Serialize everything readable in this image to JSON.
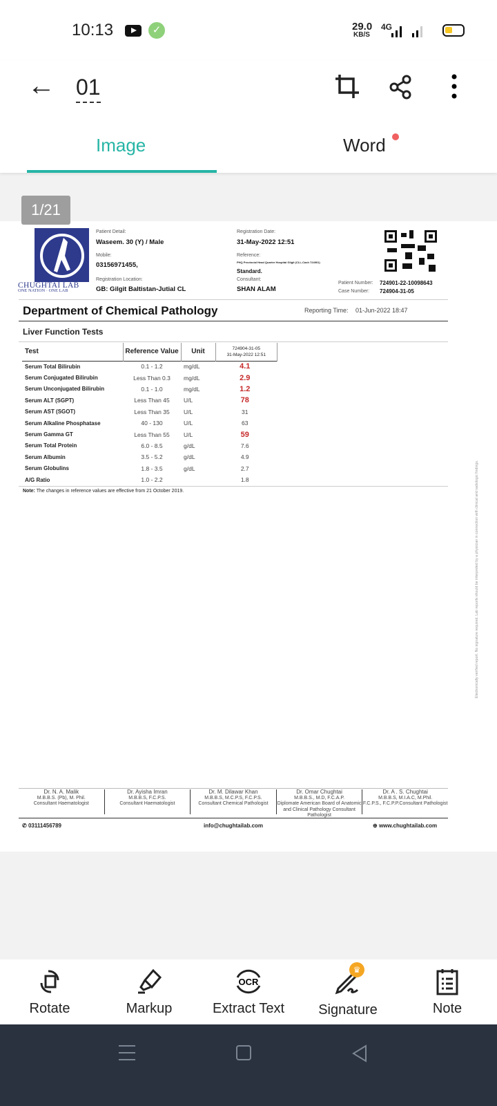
{
  "status": {
    "time": "10:13",
    "speed": "29.0",
    "speed_unit": "KB/S",
    "network": "4G"
  },
  "appbar": {
    "title": "01"
  },
  "tabs": [
    {
      "label": "Image",
      "active": true
    },
    {
      "label": "Word",
      "badge": true
    }
  ],
  "page_indicator": "1/21",
  "report": {
    "lab_name": "CHUGHTAI LAB",
    "lab_tagline": "ONE NATION · ONE LAB",
    "patient_detail_label": "Patient Detail:",
    "patient_detail": "Waseem.  30 (Y) / Male",
    "mobile_label": "Mobile:",
    "mobile": "03156971455,",
    "reg_location_label": "Registration Location:",
    "reg_location": "GB: Gilgit Baltistan-Jutial CL",
    "reg_date_label": "Registration Date:",
    "reg_date": "31-May-2022 12:51",
    "reference_label": "Reference:",
    "reference": "PHQ Provincial Head Quarter Hospital Gilgit (CLL-Cash 724901)",
    "reference2": "Standard.",
    "consultant_label": "Consultant:",
    "consultant": "SHAN ALAM",
    "patient_number_label": "Patient Number:",
    "patient_number": "724901-22-10098643",
    "case_number_label": "Case Number:",
    "case_number": "724904-31-05",
    "department": "Department of Chemical Pathology",
    "reporting_time_label": "Reporting Time:",
    "reporting_time": "01-Jun-2022 18:47",
    "section": "Liver Function Tests",
    "columns": [
      "Test",
      "Reference Value",
      "Unit",
      "724904-31-05",
      "31-May-2022 12:51"
    ],
    "rows": [
      {
        "test": "Serum Total Bilirubin",
        "ref": "0.1  -  1.2",
        "unit": "mg/dL",
        "value": "4.1",
        "abnormal": true
      },
      {
        "test": "Serum Conjugated Bilirubin",
        "ref": "Less Than 0.3",
        "unit": "mg/dL",
        "value": "2.9",
        "abnormal": true
      },
      {
        "test": "Serum Unconjugated Bilirubin",
        "ref": "0.1  -  1.0",
        "unit": "mg/dL",
        "value": "1.2",
        "abnormal": true
      },
      {
        "test": "Serum ALT (SGPT)",
        "ref": "Less Than 45",
        "unit": "U/L",
        "value": "78",
        "abnormal": true
      },
      {
        "test": "Serum AST (SGOT)",
        "ref": "Less Than 35",
        "unit": "U/L",
        "value": "31",
        "abnormal": false
      },
      {
        "test": "Serum Alkaline Phosphatase",
        "ref": "40  -  130",
        "unit": "U/L",
        "value": "63",
        "abnormal": false
      },
      {
        "test": "Serum Gamma GT",
        "ref": "Less Than 55",
        "unit": "U/L",
        "value": "59",
        "abnormal": true
      },
      {
        "test": "Serum Total Protein",
        "ref": "6.0  -  8.5",
        "unit": "g/dL",
        "value": "7.6",
        "abnormal": false
      },
      {
        "test": "Serum Albumin",
        "ref": "3.5  -  5.2",
        "unit": "g/dL",
        "value": "4.9",
        "abnormal": false
      },
      {
        "test": "Serum Globulins",
        "ref": "1.8  -  3.5",
        "unit": "g/dL",
        "value": "2.7",
        "abnormal": false
      },
      {
        "test": "A/G Ratio",
        "ref": "1.0  -  2.2",
        "unit": "",
        "value": "1.8",
        "abnormal": false
      }
    ],
    "note_label": "Note:",
    "note": " The changes in reference values are  effective from 21 October 2019.",
    "side_text": "Electronically verified report. No signature required. Lab reports should be interpreted by a physician in connection with clinical and radiologic findings.",
    "doctors": [
      {
        "name": "Dr. N. A. Malik",
        "l1": "M.B.B.S. (Pb), M. Phil.",
        "l2": "Consultant Haematologist"
      },
      {
        "name": "Dr. Ayisha Imran",
        "l1": "M.B.B.S, F.C.P.S.",
        "l2": "Consultant Haematologist"
      },
      {
        "name": "Dr. M. Dilawar Khan",
        "l1": "M.B.B.S, M.C.P.S, F.C.P.S.",
        "l2": "Consultant Chemical Pathologist"
      },
      {
        "name": "Dr. Omar Chughtai",
        "l1": "M.B.B.S., M.D, F.C.A.P.",
        "l2": "Diplomate American Board of Anatomic and Clinical Pathology Consultant Pathologist"
      },
      {
        "name": "Dr. A . S. Chughtai",
        "l1": "M.B.B.S, M.I.A.C, M.Phil.",
        "l2": "F.C.P.S., F.C.P.P.Consultant Pathologist"
      }
    ],
    "phone": "03111456789",
    "email": "info@chughtailab.com",
    "website": "www.chughtailab.com"
  },
  "toolbar": [
    {
      "label": "Rotate",
      "icon": "rotate-icon"
    },
    {
      "label": "Markup",
      "icon": "highlighter-icon"
    },
    {
      "label": "Extract Text",
      "icon": "ocr-icon"
    },
    {
      "label": "Signature",
      "icon": "signature-icon",
      "premium": true
    },
    {
      "label": "Note",
      "icon": "note-icon"
    }
  ],
  "colors": {
    "accent": "#26b5a6",
    "abnormal": "#c62828",
    "premium": "#f5a623",
    "navbar": "#2a323f"
  }
}
